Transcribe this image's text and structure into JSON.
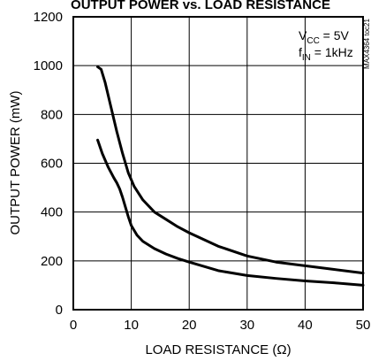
{
  "chart_data": {
    "type": "line",
    "title": "OUTPUT POWER vs. LOAD RESISTANCE",
    "xlabel": "LOAD RESISTANCE (Ω)",
    "ylabel": "OUTPUT POWER (mW)",
    "xlim": [
      0,
      50
    ],
    "ylim": [
      0,
      1200
    ],
    "x_ticks": [
      "0",
      "10",
      "20",
      "30",
      "40",
      "50"
    ],
    "y_ticks": [
      "0",
      "200",
      "400",
      "600",
      "800",
      "1000",
      "1200"
    ],
    "grid": true,
    "series": [
      {
        "x": [
          4.2,
          4.8,
          5.5,
          6.5,
          7.5,
          8.5,
          9.5,
          10.5,
          12,
          14,
          16,
          18,
          20,
          25,
          30,
          35,
          40,
          45,
          50
        ],
        "values": [
          995,
          985,
          930,
          830,
          730,
          640,
          560,
          505,
          450,
          400,
          370,
          340,
          315,
          260,
          220,
          195,
          180,
          165,
          150
        ]
      },
      {
        "x": [
          4.2,
          5,
          6,
          7,
          7.5,
          8,
          8.5,
          9,
          9.5,
          10,
          11,
          12,
          14,
          16,
          18,
          20,
          25,
          30,
          35,
          40,
          45,
          50
        ],
        "values": [
          695,
          640,
          585,
          540,
          520,
          495,
          460,
          420,
          380,
          345,
          305,
          280,
          250,
          228,
          210,
          195,
          160,
          140,
          128,
          118,
          110,
          100
        ]
      }
    ],
    "annotations": {
      "vcc": {
        "main": "V",
        "sub": "CC",
        "rest": " = 5V"
      },
      "fin": {
        "main": "f",
        "sub": "IN",
        "rest": " = 1kHz"
      }
    },
    "side_id": "MAX4364 toc21"
  }
}
